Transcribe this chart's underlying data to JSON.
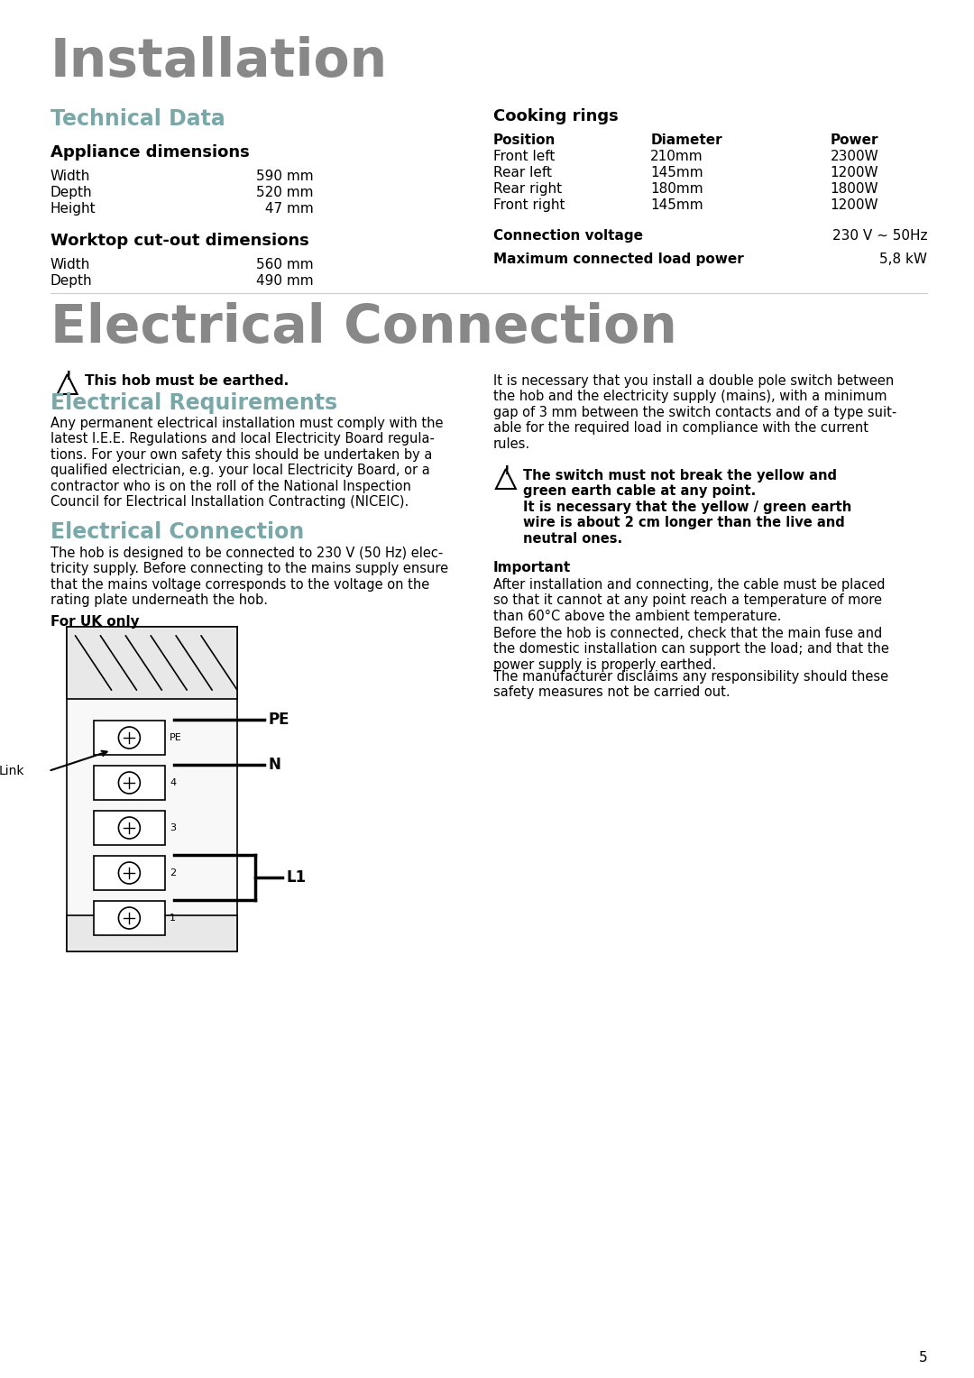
{
  "title_installation": "Installation",
  "title_electrical": "Electrical Connection",
  "section_technical": "Technical Data",
  "subsection_appliance": "Appliance dimensions",
  "appliance_dims": [
    [
      "Width",
      "590 mm"
    ],
    [
      "Depth",
      "520 mm"
    ],
    [
      "Height",
      " 47 mm"
    ]
  ],
  "subsection_worktop": "Worktop cut-out dimensions",
  "worktop_dims": [
    [
      "Width",
      "560 mm"
    ],
    [
      "Depth",
      "490 mm"
    ]
  ],
  "cooking_rings_title": "Cooking rings",
  "cooking_rings_headers": [
    "Position",
    "Diameter",
    "Power"
  ],
  "cooking_rings_data": [
    [
      "Front left",
      "210mm",
      "2300W"
    ],
    [
      "Rear left",
      "145mm",
      "1200W"
    ],
    [
      "Rear right",
      "180mm",
      "1800W"
    ],
    [
      "Front right",
      "145mm",
      "1200W"
    ]
  ],
  "connection_voltage_label": "Connection voltage",
  "connection_voltage_value": "230 V ~ 50Hz",
  "max_power_label": "Maximum connected load power",
  "max_power_value": "5,8 kW",
  "warning1_text": "This hob must be earthed.",
  "elec_req_title": "Electrical Requirements",
  "elec_req_text": "Any permanent electrical installation must comply with the\nlatest I.E.E. Regulations and local Electricity Board regula-\ntions. For your own safety this should be undertaken by a\nqualified electrician, e.g. your local Electricity Board, or a\ncontractor who is on the roll of the National Inspection\nCouncil for Electrical Installation Contracting (NICEIC).",
  "elec_conn_title": "Electrical Connection",
  "elec_conn_text": "The hob is designed to be connected to 230 V (50 Hz) elec-\ntricity supply. Before connecting to the mains supply ensure\nthat the mains voltage corresponds to the voltage on the\nrating plate underneath the hob.",
  "for_uk_only": "For UK only",
  "right_col_text1": "It is necessary that you install a double pole switch between\nthe hob and the electricity supply (mains), with a minimum\ngap of 3 mm between the switch contacts and of a type suit-\nable for the required load in compliance with the current\nrules.",
  "warning2_text": "The switch must not break the yellow and\ngreen earth cable at any point.\nIt is necessary that the yellow / green earth\nwire is about 2 cm longer than the live and\nneutral ones.",
  "important_label": "Important",
  "important_text1": "After installation and connecting, the cable must be placed\nso that it cannot at any point reach a temperature of more\nthan 60°C above the ambient temperature.",
  "important_text2": "Before the hob is connected, check that the main fuse and\nthe domestic installation can support the load; and that the\npower supply is properly earthed.",
  "important_text3": "The manufacturer disclaims any responsibility should these\nsafety measures not be carried out.",
  "page_number": "5",
  "bg_color": "#ffffff",
  "text_color": "#000000",
  "title_color": "#808080",
  "heading_color": "#6b8e8e"
}
